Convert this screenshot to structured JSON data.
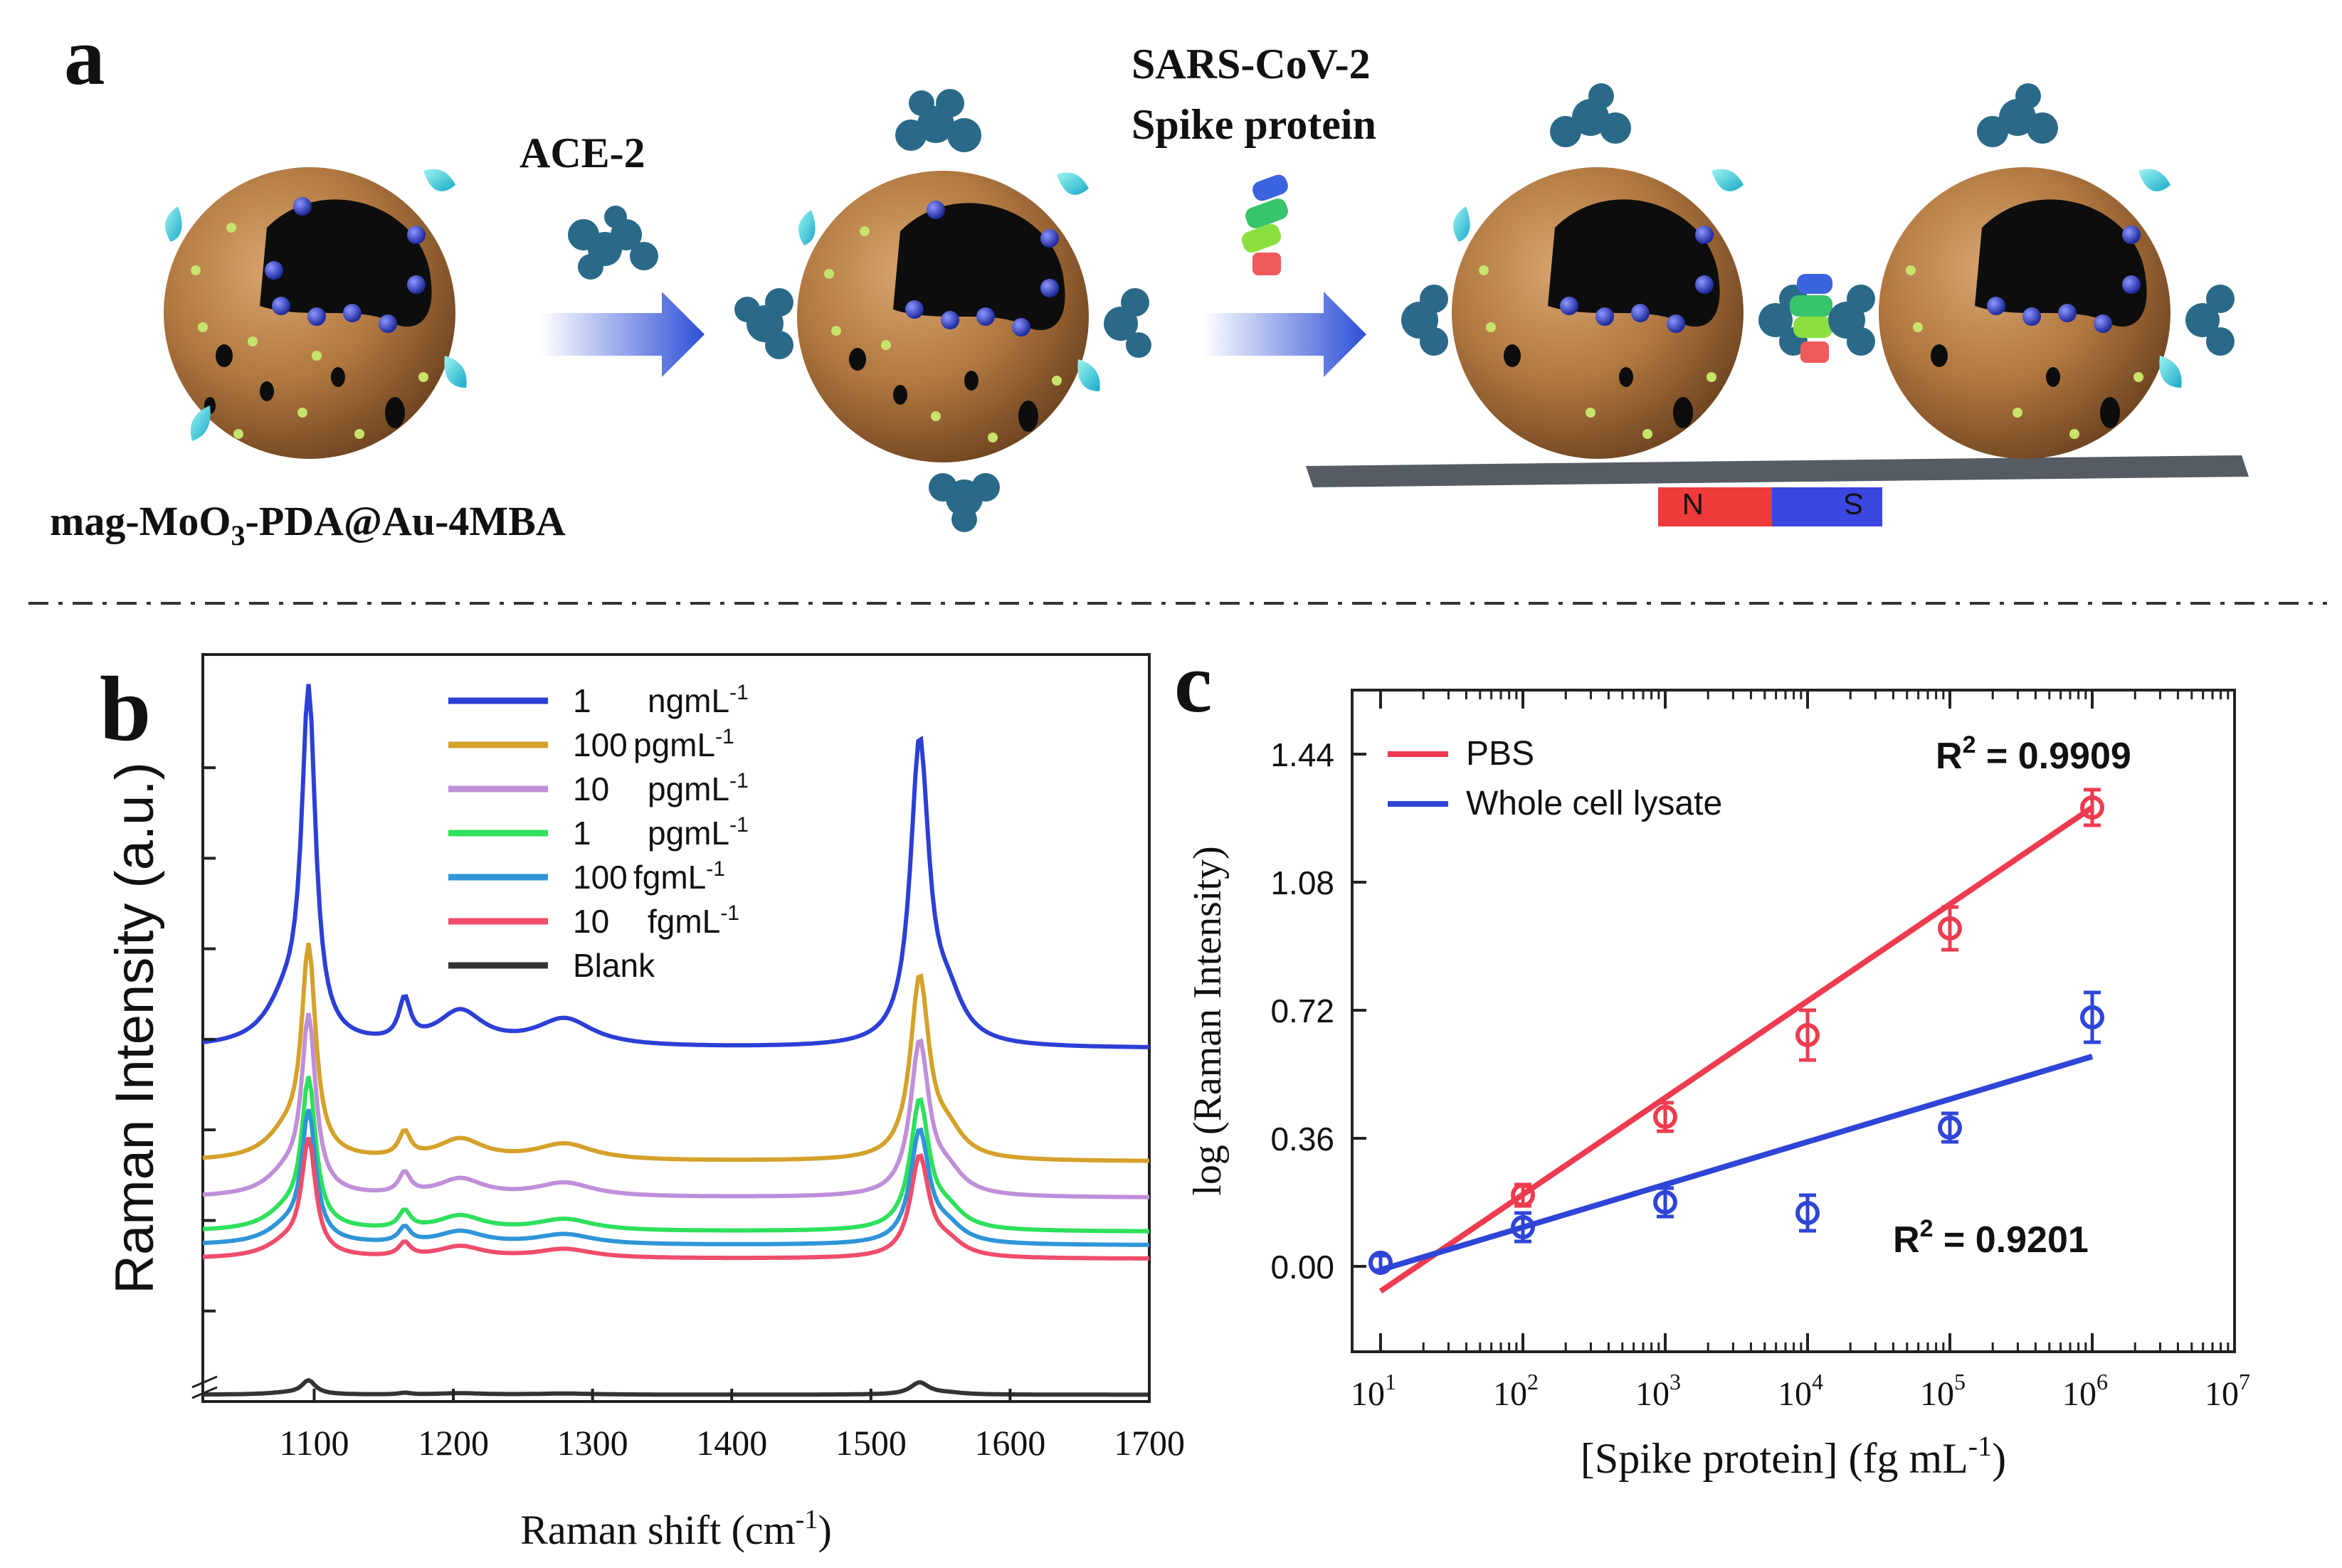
{
  "panel_a": {
    "letter": "a",
    "label_ace2": "ACE-2",
    "label_spike_line1": "SARS-CoV-2",
    "label_spike_line2": "Spike protein",
    "label_particle_base": "mag-MoO",
    "label_particle_sub": "3",
    "label_particle_rest": "-PDA@Au-4MBA",
    "magnet_n": "N",
    "magnet_s": "S",
    "colors": {
      "shell": "#b27b45",
      "core": "#111111",
      "magnet_n": "#ee3b3b",
      "magnet_s": "#3c46e0",
      "arrow": "#3553d8"
    }
  },
  "chart_data": [
    {
      "type": "line",
      "panel": "b",
      "letter": "b",
      "xlabel_base": "Raman shift (cm",
      "xlabel_sup": "-1",
      "xlabel_end": ")",
      "ylabel": "Raman Intensity (a.u.)",
      "xlim": [
        1020,
        1700
      ],
      "xticks": [
        "1100",
        "1200",
        "1300",
        "1400",
        "1500",
        "1600",
        "1700"
      ],
      "xtick_values": [
        1100,
        1200,
        1300,
        1400,
        1500,
        1600,
        1700
      ],
      "peaks": [
        1096,
        1165,
        1205,
        1280,
        1535
      ],
      "series": [
        {
          "name": "1",
          "unit": "ngmL",
          "sup": "-1",
          "color": "#2c3fd6",
          "baseline": 7.8,
          "amplitude": 7.5
        },
        {
          "name": "100",
          "unit": "pgmL",
          "sup": "-1",
          "color": "#d4a12a",
          "baseline": 5.3,
          "amplitude": 4.5
        },
        {
          "name": "10",
          "unit": "pgmL",
          "sup": "-1",
          "color": "#c08fd9",
          "baseline": 4.5,
          "amplitude": 3.8
        },
        {
          "name": "1",
          "unit": "pgmL",
          "sup": "-1",
          "color": "#2ee05c",
          "baseline": 3.75,
          "amplitude": 3.2
        },
        {
          "name": "100",
          "unit": "fgmL",
          "sup": "-1",
          "color": "#2f95d8",
          "baseline": 3.45,
          "amplitude": 2.8
        },
        {
          "name": "10",
          "unit": "fgmL",
          "sup": "-1",
          "color": "#ef4d6b",
          "baseline": 3.15,
          "amplitude": 2.5
        },
        {
          "name": "Blank",
          "unit": "",
          "sup": "",
          "color": "#333333",
          "baseline": 0.15,
          "amplitude": 0.3
        }
      ]
    },
    {
      "type": "scatter",
      "panel": "c",
      "letter": "c",
      "xscale": "log",
      "xlabel_base": "[Spike protein] (fg mL",
      "xlabel_sup": "-1",
      "xlabel_end": ")",
      "ylabel": "log (Raman Intensity)",
      "xlim_exp": [
        0.8,
        7
      ],
      "ylim": [
        -0.24,
        1.62
      ],
      "yticks": [
        "0.00",
        "0.36",
        "0.72",
        "1.08",
        "1.44"
      ],
      "ytick_values": [
        0,
        0.36,
        0.72,
        1.08,
        1.44
      ],
      "xtick_base": "10",
      "xtick_exponents": [
        "1",
        "2",
        "3",
        "4",
        "5",
        "6",
        "7"
      ],
      "series": [
        {
          "name": "PBS",
          "color": "#ee3b4f",
          "x_exp": [
            1,
            2,
            3,
            4,
            5,
            6
          ],
          "y": [
            0.01,
            0.2,
            0.42,
            0.65,
            0.95,
            1.29
          ],
          "err": [
            0.02,
            0.03,
            0.04,
            0.07,
            0.06,
            0.05
          ],
          "fit": [
            [
              1,
              -0.07
            ],
            [
              6,
              1.29
            ]
          ],
          "r2_base": "R",
          "r2_sup": "2",
          "r2_value": " = 0.9909"
        },
        {
          "name": "Whole cell lysate",
          "color": "#2f45d8",
          "x_exp": [
            1,
            2,
            3,
            4,
            5,
            6
          ],
          "y": [
            0.01,
            0.11,
            0.18,
            0.15,
            0.39,
            0.7
          ],
          "err": [
            0.02,
            0.04,
            0.04,
            0.05,
            0.04,
            0.07
          ],
          "fit": [
            [
              1,
              -0.01
            ],
            [
              6,
              0.59
            ]
          ],
          "r2_base": "R",
          "r2_sup": "2",
          "r2_value": " = 0.9201"
        }
      ]
    }
  ]
}
